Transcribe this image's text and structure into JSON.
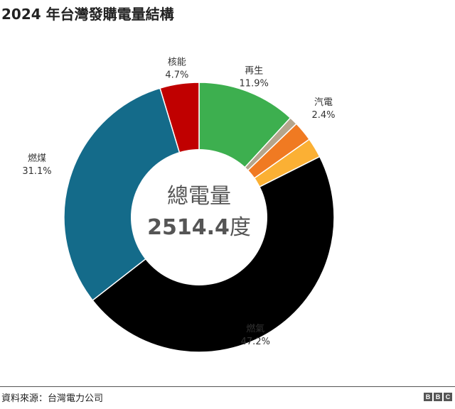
{
  "title": "2024 年台灣發購電量結構",
  "chart_data": {
    "type": "pie",
    "donut": true,
    "title": "2024 年台灣發購電量結構",
    "center_label": "總電量",
    "center_value": "2514.4",
    "center_unit": "度",
    "slices": [
      {
        "name": "再生",
        "value": 11.9,
        "label": "11.9%",
        "color": "#3daf4f"
      },
      {
        "name": "",
        "value": 1.0,
        "label": "",
        "color": "#b5a58c"
      },
      {
        "name": "",
        "value": 2.4,
        "label": "",
        "color": "#f07a22"
      },
      {
        "name": "汽電",
        "value": 2.4,
        "label": "2.4%",
        "color": "#fbb034"
      },
      {
        "name": "燃氣",
        "value": 47.2,
        "label": "47.2%",
        "color": "#000000"
      },
      {
        "name": "燃煤",
        "value": 31.1,
        "label": "31.1%",
        "color": "#146b8a"
      },
      {
        "name": "核能",
        "value": 4.7,
        "label": "4.7%",
        "color": "#c00000"
      }
    ]
  },
  "footer": {
    "source": "資料來源：台灣電力公司",
    "logo": [
      "B",
      "B",
      "C"
    ]
  }
}
